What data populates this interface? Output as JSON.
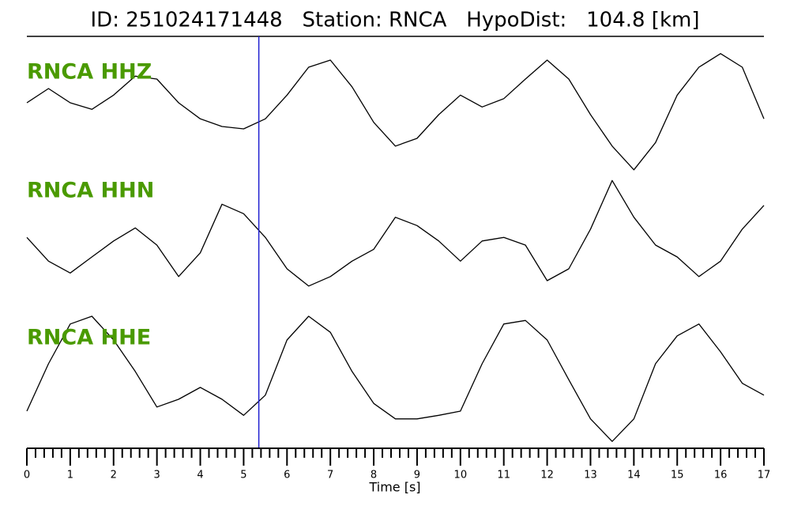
{
  "chart_data": {
    "type": "line",
    "title": "ID: 251024171448   Station: RNCA   HypoDist:   104.8 [km]",
    "xlabel": "Time [s]",
    "x": [
      0,
      0.5,
      1,
      1.5,
      2,
      2.5,
      3,
      3.5,
      4,
      4.5,
      5,
      5.5,
      6,
      6.5,
      7,
      7.5,
      8,
      8.5,
      9,
      9.5,
      10,
      10.5,
      11,
      11.5,
      12,
      12.5,
      13,
      13.5,
      14,
      14.5,
      15,
      15.5,
      16,
      16.5,
      17
    ],
    "xlim": [
      0,
      17
    ],
    "xticks": [
      0,
      1,
      2,
      3,
      4,
      5,
      6,
      7,
      8,
      9,
      10,
      11,
      12,
      13,
      14,
      15,
      16,
      17
    ],
    "ylim": [
      -1,
      1
    ],
    "marker_x": 5.35,
    "marker_color": "#1f1fd0",
    "label_color": "#4a9a00",
    "series": [
      {
        "name": "RNCA HHZ",
        "color": "#000000",
        "values": [
          0.16,
          0.4,
          0.16,
          0.05,
          0.29,
          0.61,
          0.56,
          0.16,
          -0.11,
          -0.24,
          -0.28,
          -0.11,
          0.29,
          0.76,
          0.88,
          0.43,
          -0.17,
          -0.57,
          -0.44,
          -0.04,
          0.29,
          0.09,
          0.23,
          0.56,
          0.88,
          0.56,
          -0.04,
          -0.57,
          -0.97,
          -0.51,
          0.29,
          0.76,
          0.99,
          0.76,
          -0.11
        ]
      },
      {
        "name": "RNCA HHN",
        "color": "#000000",
        "values": [
          -0.11,
          -0.51,
          -0.71,
          -0.44,
          -0.17,
          0.05,
          -0.24,
          -0.77,
          -0.37,
          0.45,
          0.29,
          -0.11,
          -0.64,
          -0.93,
          -0.77,
          -0.51,
          -0.31,
          0.23,
          0.09,
          -0.17,
          -0.51,
          -0.17,
          -0.11,
          -0.24,
          -0.84,
          -0.64,
          0.03,
          0.85,
          0.23,
          -0.24,
          -0.44,
          -0.77,
          -0.51,
          0.03,
          0.43
        ]
      },
      {
        "name": "RNCA HHE",
        "color": "#000000",
        "values": [
          -0.56,
          0.24,
          0.91,
          1.04,
          0.64,
          0.11,
          -0.49,
          -0.36,
          -0.16,
          -0.36,
          -0.63,
          -0.29,
          0.64,
          1.04,
          0.77,
          0.11,
          -0.43,
          -0.69,
          -0.69,
          -0.63,
          -0.56,
          0.24,
          0.91,
          0.97,
          0.64,
          -0.03,
          -0.69,
          -1.07,
          -0.69,
          0.24,
          0.71,
          0.91,
          0.44,
          -0.09,
          -0.29
        ]
      }
    ]
  }
}
